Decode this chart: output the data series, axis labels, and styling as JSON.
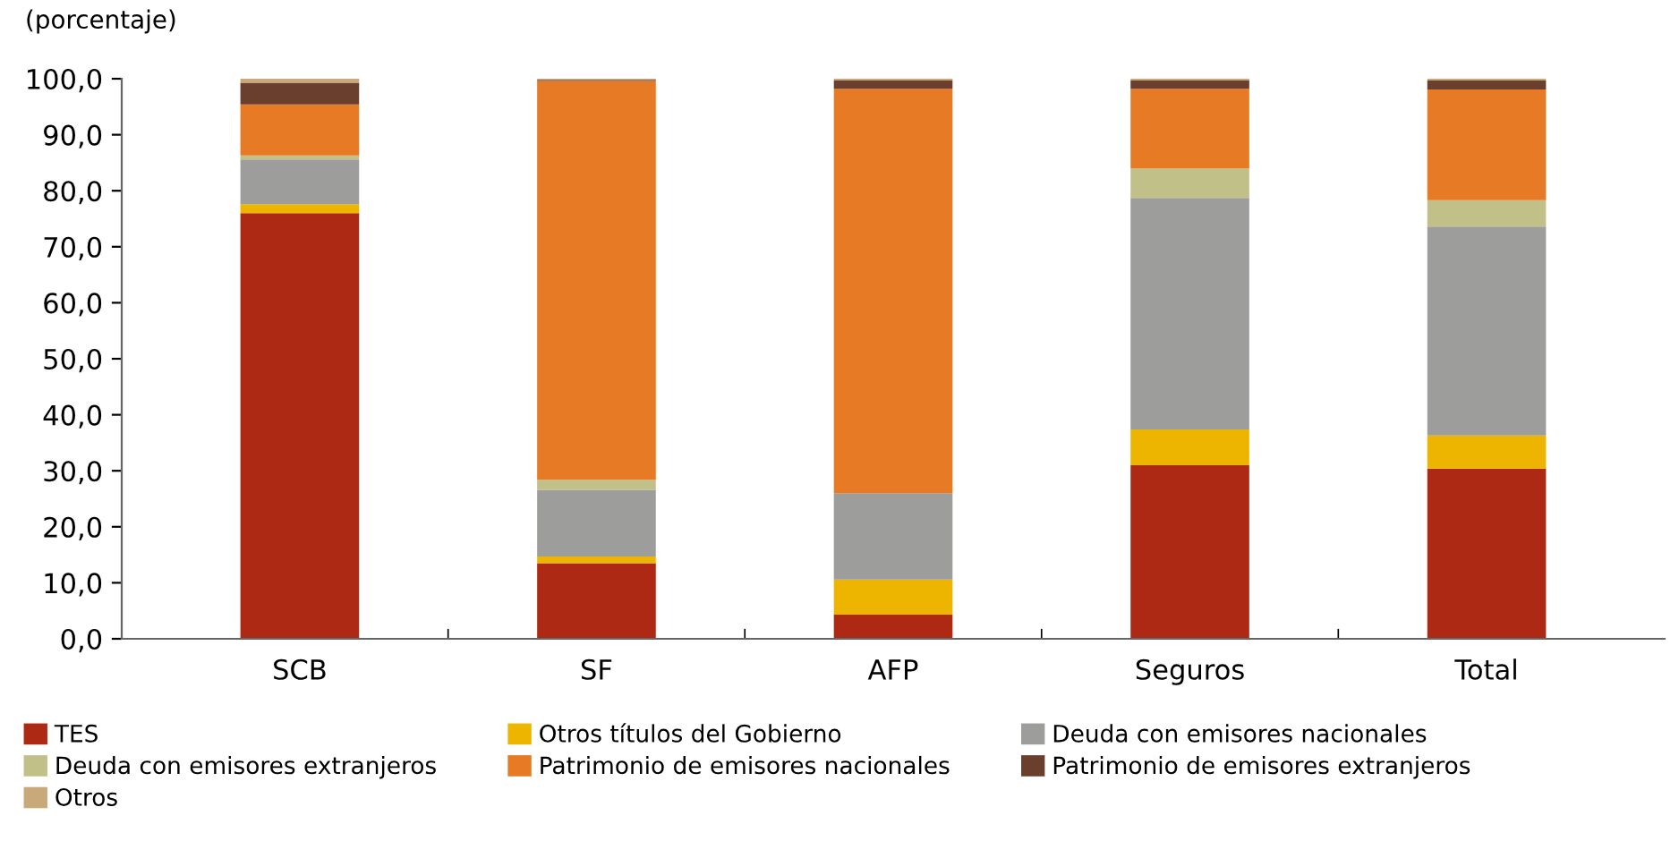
{
  "chart_data": {
    "type": "bar",
    "stacked": true,
    "ylabel": "(porcentaje)",
    "categories": [
      "SCB",
      "SF",
      "AFP",
      "Seguros",
      "Total"
    ],
    "series": [
      {
        "name": "TES",
        "color": "#ae2914",
        "values": [
          76.0,
          13.5,
          4.3,
          31.0,
          30.4
        ]
      },
      {
        "name": "Otros títulos del Gobierno",
        "color": "#edb500",
        "values": [
          1.6,
          1.2,
          6.3,
          6.4,
          5.9
        ]
      },
      {
        "name": "Deuda con emisores nacionales",
        "color": "#9d9d9c",
        "values": [
          8.0,
          11.9,
          15.4,
          41.3,
          37.3
        ]
      },
      {
        "name": "Deuda con emisores extranjeros",
        "color": "#c2c089",
        "values": [
          0.7,
          1.8,
          0.0,
          5.3,
          4.7
        ]
      },
      {
        "name": "Patrimonio de emisores nacionales",
        "color": "#e67a25",
        "values": [
          9.1,
          71.2,
          72.2,
          14.2,
          19.8
        ]
      },
      {
        "name": "Patrimonio de emisores extranjeros",
        "color": "#6b3f2e",
        "values": [
          3.9,
          0.2,
          1.5,
          1.5,
          1.6
        ]
      },
      {
        "name": "Otros",
        "color": "#c9a87a",
        "values": [
          0.7,
          0.2,
          0.3,
          0.3,
          0.3
        ]
      }
    ],
    "ylim": [
      0,
      100
    ],
    "yticks": [
      {
        "value": 0,
        "label": "0,0"
      },
      {
        "value": 10,
        "label": "10,0"
      },
      {
        "value": 20,
        "label": "20,0"
      },
      {
        "value": 30,
        "label": "30,0"
      },
      {
        "value": 40,
        "label": "40,0"
      },
      {
        "value": 50,
        "label": "50,0"
      },
      {
        "value": 60,
        "label": "60,0"
      },
      {
        "value": 70,
        "label": "70,0"
      },
      {
        "value": 80,
        "label": "80,0"
      },
      {
        "value": 90,
        "label": "90,0"
      },
      {
        "value": 100,
        "label": "100,0"
      }
    ],
    "grid": false,
    "legend": "bottom"
  }
}
